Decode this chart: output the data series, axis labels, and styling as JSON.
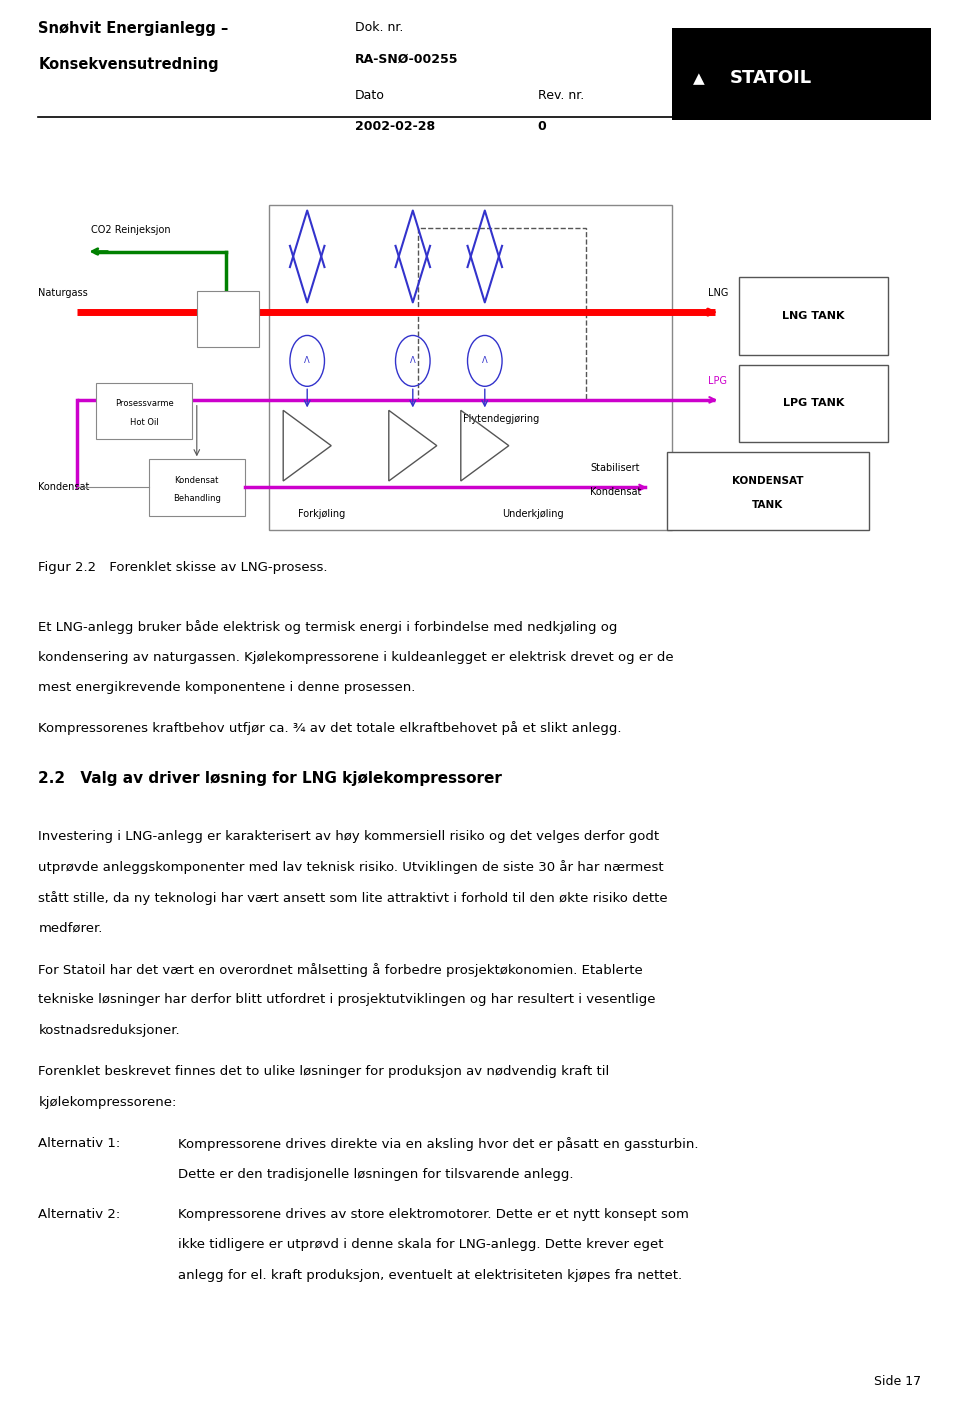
{
  "page_width": 9.6,
  "page_height": 14.13,
  "bg_color": "#ffffff",
  "header": {
    "left_title_line1": "Snøhvit Energianlegg –",
    "left_title_line2": "Konsekvensutredning",
    "mid_label1": "Dok. nr.",
    "mid_val1": "RA-SNØ-00255",
    "mid_label2": "Dato",
    "mid_val2": "2002-02-28",
    "right_label": "Rev. nr.",
    "right_val": "0",
    "statoil_bg": "#000000",
    "statoil_text": "STATOIL"
  },
  "figure_caption": "Figur 2.2 Forenklet skisse av LNG-prosess.",
  "footer_text": "Side 17",
  "section_heading": "2.2 Valg av driver løsning for LNG kjølekompressorer"
}
